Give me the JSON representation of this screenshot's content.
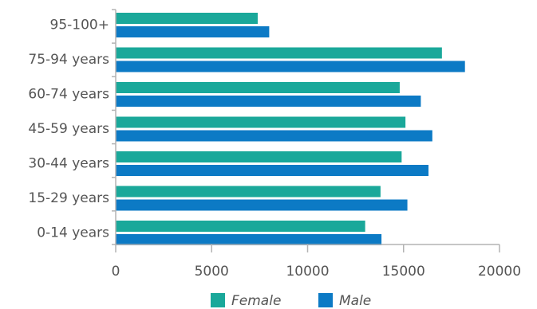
{
  "chart_data": {
    "type": "bar",
    "orientation": "horizontal",
    "categories": [
      "95-100+",
      "75-94 years",
      "60-74 years",
      "45-59 years",
      "30-44 years",
      "15-29 years",
      "0-14 years"
    ],
    "series": [
      {
        "name": "Female",
        "color": "#1aa89a",
        "values": [
          7400,
          17000,
          14800,
          15100,
          14900,
          13800,
          13000
        ]
      },
      {
        "name": "Male",
        "color": "#0c7ac5",
        "values": [
          8000,
          18200,
          15900,
          16500,
          16300,
          15200,
          13850
        ]
      }
    ],
    "xlim": [
      0,
      20000
    ],
    "xticks": [
      0,
      5000,
      10000,
      15000,
      20000
    ],
    "xlabel": "",
    "ylabel": "",
    "title": "",
    "grid": false,
    "legend_position": "bottom",
    "axis_color": "#b3b3b3"
  }
}
